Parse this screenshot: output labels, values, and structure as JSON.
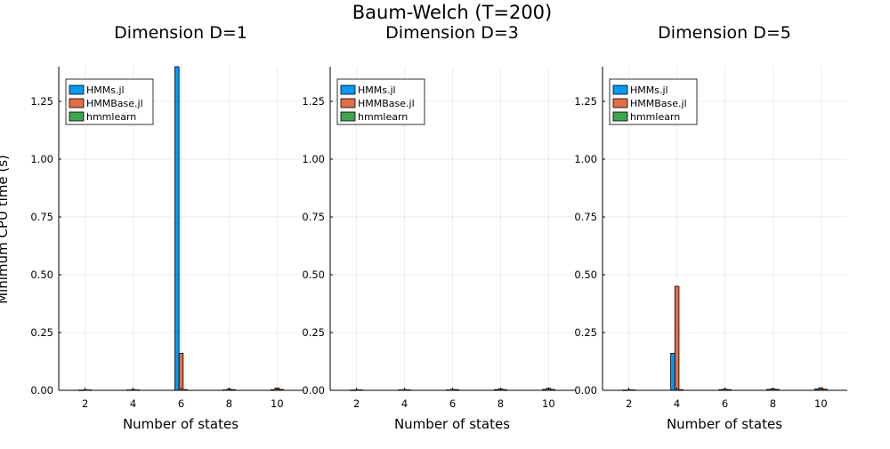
{
  "suptitle": "Baum-Welch (T=200)",
  "ylabel": "Minimum CPU time (s)",
  "colors": {
    "HMMs.jl": "#009af9",
    "HMMBase.jl": "#e26f46",
    "hmmlearn": "#3da44d"
  },
  "chart_data": [
    {
      "type": "bar",
      "title": "Dimension D=1",
      "xlabel": "Number of states",
      "ylabel": "Minimum CPU time (s)",
      "categories": [
        2,
        4,
        6,
        8,
        10
      ],
      "xticks": [
        "2",
        "4",
        "6",
        "8",
        "10"
      ],
      "ylim": [
        0,
        1.4
      ],
      "yticks": [
        "0.00",
        "0.25",
        "0.50",
        "0.75",
        "1.00",
        "1.25"
      ],
      "grid": true,
      "legend": "top-left",
      "series": [
        {
          "name": "HMMs.jl",
          "values": [
            0.001,
            0.002,
            1.4,
            0.002,
            0.003
          ]
        },
        {
          "name": "HMMBase.jl",
          "values": [
            0.002,
            0.003,
            0.16,
            0.005,
            0.01
          ]
        },
        {
          "name": "hmmlearn",
          "values": [
            0.002,
            0.002,
            0.003,
            0.003,
            0.004
          ]
        }
      ]
    },
    {
      "type": "bar",
      "title": "Dimension D=3",
      "xlabel": "Number of states",
      "ylabel": "",
      "categories": [
        2,
        4,
        6,
        8,
        10
      ],
      "xticks": [
        "2",
        "4",
        "6",
        "8",
        "10"
      ],
      "ylim": [
        0,
        1.4
      ],
      "yticks": [
        "0.00",
        "0.25",
        "0.50",
        "0.75",
        "1.00",
        "1.25"
      ],
      "grid": true,
      "legend": "top-left",
      "series": [
        {
          "name": "HMMs.jl",
          "values": [
            0.001,
            0.002,
            0.002,
            0.003,
            0.004
          ]
        },
        {
          "name": "HMMBase.jl",
          "values": [
            0.002,
            0.003,
            0.004,
            0.006,
            0.009
          ]
        },
        {
          "name": "hmmlearn",
          "values": [
            0.002,
            0.002,
            0.003,
            0.003,
            0.004
          ]
        }
      ]
    },
    {
      "type": "bar",
      "title": "Dimension D=5",
      "xlabel": "Number of states",
      "ylabel": "",
      "categories": [
        2,
        4,
        6,
        8,
        10
      ],
      "xticks": [
        "2",
        "4",
        "6",
        "8",
        "10"
      ],
      "ylim": [
        0,
        1.4
      ],
      "yticks": [
        "0.00",
        "0.25",
        "0.50",
        "0.75",
        "1.00",
        "1.25"
      ],
      "grid": true,
      "legend": "top-left",
      "series": [
        {
          "name": "HMMs.jl",
          "values": [
            0.001,
            0.16,
            0.003,
            0.004,
            0.006
          ]
        },
        {
          "name": "HMMBase.jl",
          "values": [
            0.002,
            0.45,
            0.005,
            0.007,
            0.011
          ]
        },
        {
          "name": "hmmlearn",
          "values": [
            0.002,
            0.003,
            0.003,
            0.004,
            0.005
          ]
        }
      ]
    }
  ]
}
